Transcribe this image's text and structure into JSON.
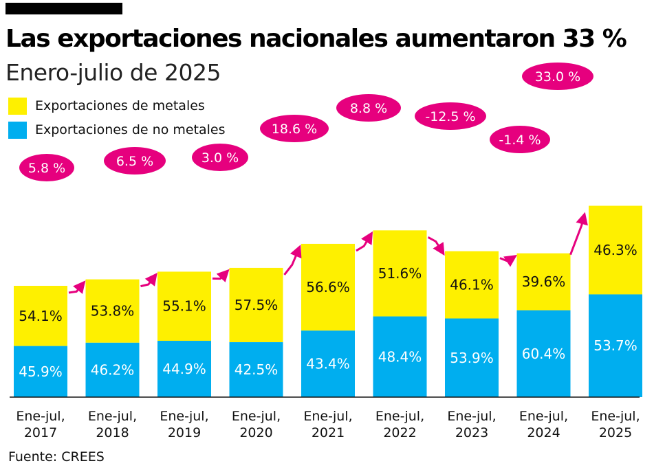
{
  "header": {
    "title": "Las exportaciones nacionales aumentaron 33 %",
    "subtitle": "Enero-julio de 2025"
  },
  "legend": [
    {
      "label": "Exportaciones de metales",
      "color": "#fef000"
    },
    {
      "label": "Exportaciones de no metales",
      "color": "#00aeef"
    }
  ],
  "source": "Fuente:  CREES",
  "colors": {
    "metales": "#fef000",
    "no_metales": "#00aeef",
    "growth": "#e6007e",
    "axis": "#111111"
  },
  "chart_data": {
    "type": "bar",
    "stacked": true,
    "title": "Las exportaciones nacionales aumentaron 33 %",
    "subtitle": "Enero-julio de 2025",
    "categories": [
      [
        "Ene-jul,",
        "2017"
      ],
      [
        "Ene-jul,",
        "2018"
      ],
      [
        "Ene-jul,",
        "2019"
      ],
      [
        "Ene-jul,",
        "2020"
      ],
      [
        "Ene-jul,",
        "2021"
      ],
      [
        "Ene-jul,",
        "2022"
      ],
      [
        "Ene-jul,",
        "2023"
      ],
      [
        "Ene-jul,",
        "2024"
      ],
      [
        "Ene-jul,",
        "2025"
      ]
    ],
    "series": [
      {
        "name": "Exportaciones de no metales",
        "share_labels": [
          "45.9%",
          "46.2%",
          "44.9%",
          "42.5%",
          "43.4%",
          "48.4%",
          "53.9%",
          "60.4%",
          "53.7%"
        ],
        "share_values": [
          45.9,
          46.2,
          44.9,
          42.5,
          43.4,
          48.4,
          53.9,
          60.4,
          53.7
        ]
      },
      {
        "name": "Exportaciones de metales",
        "share_labels": [
          "54.1%",
          "53.8%",
          "55.1%",
          "57.5%",
          "56.6%",
          "51.6%",
          "46.1%",
          "39.6%",
          "46.3%"
        ],
        "share_values": [
          54.1,
          53.8,
          55.1,
          57.5,
          56.6,
          51.6,
          46.1,
          39.6,
          46.3
        ]
      }
    ],
    "total_index": [
      100,
      105.8,
      112.7,
      116.1,
      137.7,
      149.8,
      131.1,
      129.2,
      171.9
    ],
    "growth": [
      {
        "label": "5.8 %",
        "from": 0,
        "to": 1
      },
      {
        "label": "6.5 %",
        "from": 1,
        "to": 2
      },
      {
        "label": "3.0 %",
        "from": 2,
        "to": 3
      },
      {
        "label": "18.6 %",
        "from": 3,
        "to": 4
      },
      {
        "label": "8.8 %",
        "from": 4,
        "to": 5
      },
      {
        "label": "-12.5 %",
        "from": 5,
        "to": 6
      },
      {
        "label": "-1.4 %",
        "from": 6,
        "to": 7
      },
      {
        "label": "33.0 %",
        "from": 7,
        "to": 8
      }
    ],
    "ylim": [
      0,
      172
    ]
  }
}
